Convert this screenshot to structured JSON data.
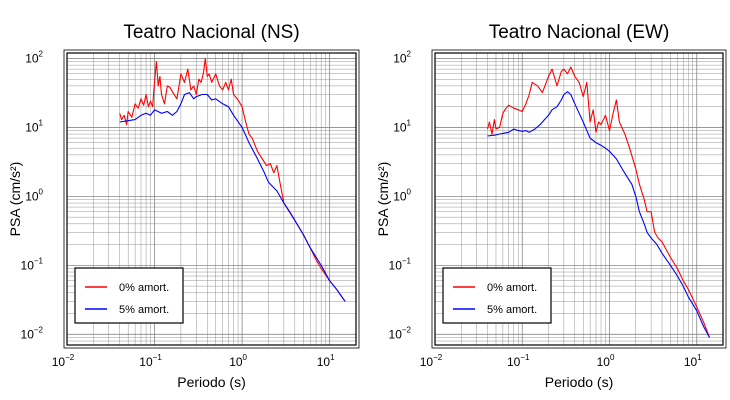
{
  "chart_data": [
    {
      "type": "line",
      "title": "Teatro Nacional (NS)",
      "xlabel": "Periodo (s)",
      "ylabel": "PSA (cm/s²)",
      "xscale": "log",
      "yscale": "log",
      "xlim": [
        0.01,
        20
      ],
      "ylim": [
        0.007,
        120
      ],
      "grid": true,
      "legend_position": "bottom-left",
      "xticks": [
        {
          "base": "10",
          "exp": "−2",
          "v": 0.01
        },
        {
          "base": "10",
          "exp": "−1",
          "v": 0.1
        },
        {
          "base": "10",
          "exp": "0",
          "v": 1
        },
        {
          "base": "10",
          "exp": "1",
          "v": 10
        }
      ],
      "yticks": [
        {
          "base": "10",
          "exp": "−2",
          "v": 0.01
        },
        {
          "base": "10",
          "exp": "−1",
          "v": 0.1
        },
        {
          "base": "10",
          "exp": "0",
          "v": 1
        },
        {
          "base": "10",
          "exp": "1",
          "v": 10
        },
        {
          "base": "10",
          "exp": "2",
          "v": 100
        }
      ],
      "series": [
        {
          "name": "0% amort.",
          "color": "#ff0000",
          "x": [
            0.04,
            0.042,
            0.045,
            0.048,
            0.05,
            0.055,
            0.06,
            0.065,
            0.07,
            0.075,
            0.08,
            0.085,
            0.09,
            0.095,
            0.1,
            0.105,
            0.11,
            0.115,
            0.12,
            0.13,
            0.14,
            0.15,
            0.16,
            0.18,
            0.2,
            0.22,
            0.24,
            0.26,
            0.28,
            0.3,
            0.32,
            0.34,
            0.36,
            0.38,
            0.4,
            0.42,
            0.45,
            0.5,
            0.55,
            0.6,
            0.65,
            0.7,
            0.75,
            0.8,
            0.9,
            1.0,
            1.1,
            1.2,
            1.3,
            1.5,
            1.7,
            1.9,
            2.1,
            2.3,
            2.5,
            2.7,
            3.0,
            3.5,
            4,
            5,
            6,
            7,
            8,
            10,
            12,
            15
          ],
          "y": [
            16,
            13,
            15,
            11,
            17,
            14,
            22,
            19,
            26,
            21,
            30,
            20,
            24,
            20,
            45,
            90,
            40,
            55,
            30,
            22,
            40,
            38,
            33,
            26,
            60,
            45,
            70,
            35,
            40,
            30,
            50,
            45,
            60,
            100,
            55,
            60,
            45,
            60,
            40,
            35,
            45,
            35,
            50,
            30,
            25,
            20,
            12,
            8,
            7,
            4.5,
            3.5,
            2.8,
            3.0,
            2.2,
            2.8,
            1.6,
            0.8,
            0.6,
            0.45,
            0.28,
            0.18,
            0.12,
            0.09,
            0.06,
            0.045,
            0.03
          ]
        },
        {
          "name": "5% amort.",
          "color": "#0000ff",
          "x": [
            0.04,
            0.05,
            0.06,
            0.07,
            0.08,
            0.09,
            0.1,
            0.12,
            0.14,
            0.16,
            0.18,
            0.2,
            0.22,
            0.25,
            0.28,
            0.3,
            0.35,
            0.4,
            0.45,
            0.5,
            0.6,
            0.7,
            0.8,
            1.0,
            1.2,
            1.5,
            1.8,
            2.0,
            2.5,
            3.0,
            4,
            5,
            6,
            8,
            10,
            12,
            15
          ],
          "y": [
            12,
            12.5,
            13,
            15,
            16,
            15,
            18,
            16,
            17,
            15,
            17,
            22,
            30,
            32,
            26,
            28,
            30,
            30,
            25,
            26,
            22,
            20,
            15,
            10,
            6,
            3.5,
            2.2,
            1.6,
            1.2,
            0.8,
            0.45,
            0.28,
            0.18,
            0.1,
            0.06,
            0.045,
            0.03
          ]
        }
      ]
    },
    {
      "type": "line",
      "title": "Teatro Nacional (EW)",
      "xlabel": "Periodo (s)",
      "ylabel": "PSA (cm/s²)",
      "xscale": "log",
      "yscale": "log",
      "xlim": [
        0.01,
        20
      ],
      "ylim": [
        0.007,
        120
      ],
      "grid": true,
      "legend_position": "bottom-left",
      "xticks": [
        {
          "base": "10",
          "exp": "−2",
          "v": 0.01
        },
        {
          "base": "10",
          "exp": "−1",
          "v": 0.1
        },
        {
          "base": "10",
          "exp": "0",
          "v": 1
        },
        {
          "base": "10",
          "exp": "1",
          "v": 10
        }
      ],
      "yticks": [
        {
          "base": "10",
          "exp": "−2",
          "v": 0.01
        },
        {
          "base": "10",
          "exp": "−1",
          "v": 0.1
        },
        {
          "base": "10",
          "exp": "0",
          "v": 1
        },
        {
          "base": "10",
          "exp": "1",
          "v": 10
        },
        {
          "base": "10",
          "exp": "2",
          "v": 100
        }
      ],
      "series": [
        {
          "name": "0% amort.",
          "color": "#ff0000",
          "x": [
            0.04,
            0.042,
            0.045,
            0.048,
            0.05,
            0.055,
            0.06,
            0.065,
            0.07,
            0.08,
            0.09,
            0.1,
            0.11,
            0.12,
            0.13,
            0.15,
            0.17,
            0.2,
            0.22,
            0.25,
            0.28,
            0.3,
            0.33,
            0.36,
            0.4,
            0.45,
            0.5,
            0.55,
            0.6,
            0.65,
            0.7,
            0.75,
            0.8,
            0.9,
            1.0,
            1.1,
            1.2,
            1.3,
            1.5,
            1.7,
            2.0,
            2.2,
            2.5,
            2.7,
            3.0,
            3.3,
            3.6,
            4,
            5,
            6,
            7,
            8,
            10,
            12,
            14
          ],
          "y": [
            9.5,
            12,
            8,
            13,
            9.5,
            10,
            16,
            19,
            21,
            19,
            18,
            17,
            22,
            30,
            45,
            40,
            32,
            55,
            70,
            40,
            65,
            70,
            60,
            75,
            55,
            45,
            28,
            45,
            12,
            18,
            8.5,
            12,
            11,
            15,
            9,
            16,
            25,
            12,
            8,
            5,
            2.5,
            1.5,
            0.9,
            0.6,
            0.6,
            0.3,
            0.25,
            0.22,
            0.13,
            0.09,
            0.06,
            0.045,
            0.025,
            0.015,
            0.009
          ]
        },
        {
          "name": "5% amort.",
          "color": "#0000ff",
          "x": [
            0.04,
            0.05,
            0.06,
            0.07,
            0.08,
            0.09,
            0.1,
            0.11,
            0.12,
            0.14,
            0.16,
            0.18,
            0.2,
            0.22,
            0.25,
            0.28,
            0.3,
            0.33,
            0.36,
            0.4,
            0.45,
            0.5,
            0.55,
            0.6,
            0.7,
            0.8,
            0.9,
            1.0,
            1.2,
            1.4,
            1.6,
            1.8,
            2.0,
            2.2,
            2.5,
            2.7,
            3.0,
            3.5,
            4,
            5,
            6,
            7,
            8,
            10,
            12,
            14
          ],
          "y": [
            7.5,
            7.8,
            8.2,
            8.5,
            9.5,
            9.0,
            8.8,
            9.0,
            8.5,
            9.5,
            11,
            13,
            15,
            18,
            20,
            25,
            30,
            33,
            30,
            22,
            16,
            12,
            9,
            7,
            6,
            5.5,
            5,
            4.5,
            3.5,
            2.5,
            1.9,
            1.5,
            1.0,
            0.6,
            0.4,
            0.3,
            0.25,
            0.2,
            0.15,
            0.1,
            0.07,
            0.05,
            0.035,
            0.022,
            0.013,
            0.009
          ]
        }
      ]
    }
  ]
}
